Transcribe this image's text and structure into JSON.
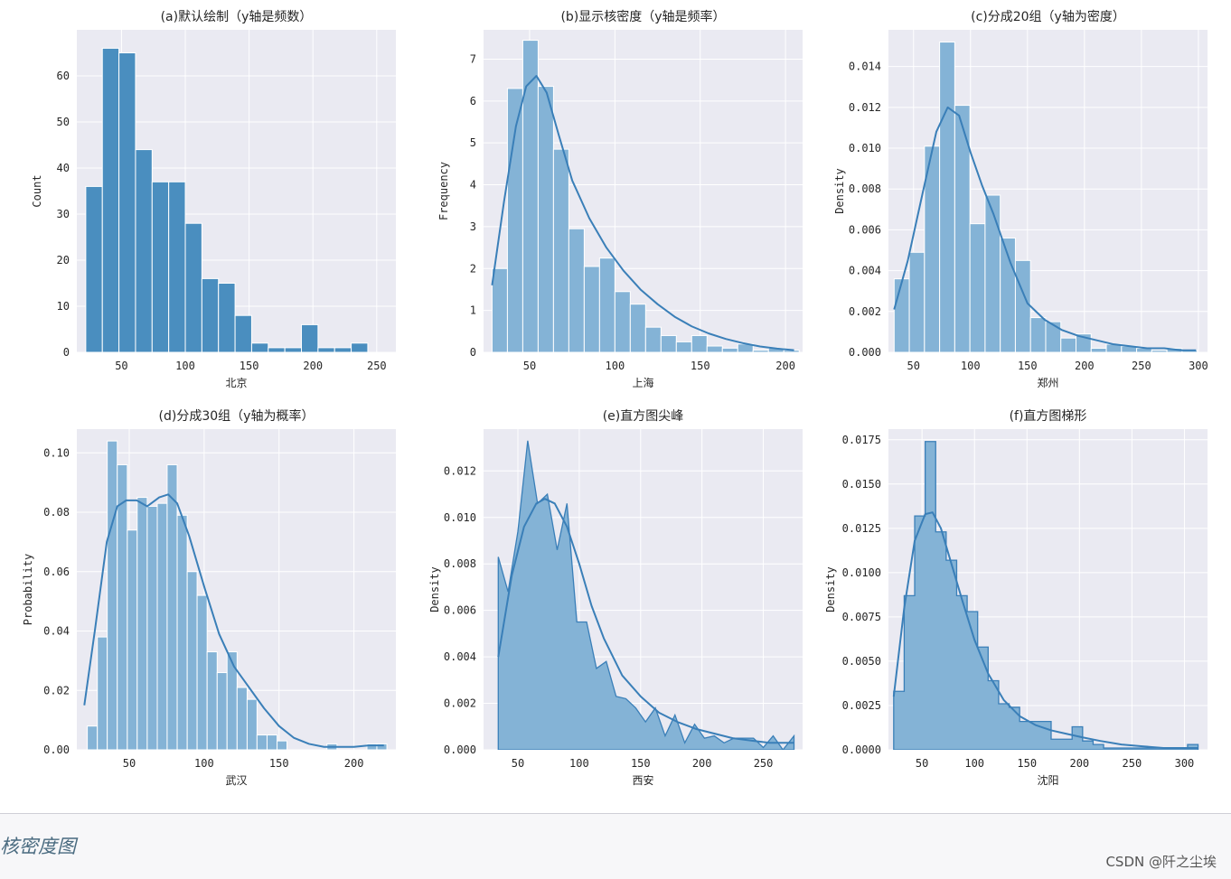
{
  "chart_data": [
    {
      "type": "bar",
      "panel": "a",
      "title": "(a)默认绘制（y轴是频数）",
      "xlabel": "北京",
      "ylabel": "Count",
      "xlim": [
        15,
        265
      ],
      "ylim": [
        0,
        70
      ],
      "xticks": [
        50,
        100,
        150,
        200,
        250
      ],
      "yticks": [
        0,
        10,
        20,
        30,
        40,
        50,
        60
      ],
      "bin_edges": [
        22,
        35,
        48,
        61,
        74,
        87,
        100,
        113,
        126,
        139,
        152,
        165,
        178,
        191,
        204,
        217,
        230,
        243,
        256
      ],
      "values": [
        36,
        66,
        65,
        44,
        37,
        37,
        28,
        16,
        15,
        8,
        2,
        1,
        1,
        6,
        1,
        1,
        2,
        0
      ],
      "style": "bars",
      "alpha": 0.9,
      "kde": null
    },
    {
      "type": "bar",
      "panel": "b",
      "title": "(b)显示核密度（y轴是频率）",
      "xlabel": "上海",
      "ylabel": "Frequency",
      "xlim": [
        23,
        210
      ],
      "ylim": [
        0,
        7.7
      ],
      "xticks": [
        50,
        100,
        150,
        200
      ],
      "yticks": [
        0,
        1,
        2,
        3,
        4,
        5,
        6,
        7
      ],
      "bin_edges": [
        28,
        37,
        46,
        55,
        64,
        73,
        82,
        91,
        100,
        109,
        118,
        127,
        136,
        145,
        154,
        163,
        172,
        181,
        190,
        199,
        208
      ],
      "values": [
        2.0,
        6.3,
        7.45,
        6.35,
        4.85,
        2.95,
        2.05,
        2.25,
        1.45,
        1.15,
        0.6,
        0.4,
        0.25,
        0.4,
        0.15,
        0.1,
        0.2,
        0.05,
        0.1,
        0.05
      ],
      "style": "bars",
      "alpha": 0.55,
      "kde": {
        "x": [
          28,
          35,
          42,
          48,
          54,
          60,
          67,
          75,
          85,
          95,
          105,
          115,
          125,
          135,
          145,
          155,
          165,
          175,
          185,
          195,
          205
        ],
        "y": [
          1.6,
          3.6,
          5.4,
          6.35,
          6.6,
          6.2,
          5.2,
          4.1,
          3.2,
          2.5,
          1.95,
          1.5,
          1.15,
          0.85,
          0.62,
          0.45,
          0.32,
          0.22,
          0.14,
          0.09,
          0.05
        ]
      }
    },
    {
      "type": "bar",
      "panel": "c",
      "title": "(c)分成20组（y轴为密度）",
      "xlabel": "郑州",
      "ylabel": "Density",
      "xlim": [
        28,
        308
      ],
      "ylim": [
        0,
        0.0158
      ],
      "xticks": [
        50,
        100,
        150,
        200,
        250,
        300
      ],
      "yticks": [
        0.0,
        0.002,
        0.004,
        0.006,
        0.008,
        0.01,
        0.012,
        0.014
      ],
      "yticklabels": [
        "0.000",
        "0.002",
        "0.004",
        "0.006",
        "0.008",
        "0.010",
        "0.012",
        "0.014"
      ],
      "bin_edges": [
        33,
        46.3,
        59.6,
        72.9,
        86.2,
        99.5,
        112.8,
        126.1,
        139.4,
        152.7,
        166,
        179.3,
        192.6,
        205.9,
        219.2,
        232.5,
        245.8,
        259.1,
        272.4,
        285.7,
        299
      ],
      "values": [
        0.0036,
        0.0049,
        0.0101,
        0.0152,
        0.0121,
        0.0063,
        0.0077,
        0.0056,
        0.0045,
        0.0017,
        0.0015,
        0.0007,
        0.0009,
        0.0002,
        0.0004,
        0.0003,
        0.0002,
        0.0001,
        0.0002,
        0.0001
      ],
      "style": "bars",
      "alpha": 0.55,
      "kde": {
        "x": [
          33,
          45,
          58,
          70,
          80,
          90,
          100,
          110,
          120,
          135,
          150,
          165,
          180,
          195,
          210,
          225,
          240,
          255,
          270,
          285,
          298
        ],
        "y": [
          0.0021,
          0.0045,
          0.0078,
          0.0108,
          0.012,
          0.0116,
          0.0098,
          0.0082,
          0.0068,
          0.0044,
          0.0024,
          0.0016,
          0.0011,
          0.0008,
          0.0006,
          0.0004,
          0.0003,
          0.0002,
          0.0002,
          0.0001,
          0.0001
        ]
      }
    },
    {
      "type": "bar",
      "panel": "d",
      "title": "(d)分成30组（y轴为概率）",
      "xlabel": "武汉",
      "ylabel": "Probability",
      "xlim": [
        15,
        228
      ],
      "ylim": [
        0,
        0.108
      ],
      "xticks": [
        50,
        100,
        150,
        200
      ],
      "yticks": [
        0.0,
        0.02,
        0.04,
        0.06,
        0.08,
        0.1
      ],
      "yticklabels": [
        "0.00",
        "0.02",
        "0.04",
        "0.06",
        "0.08",
        "0.10"
      ],
      "bin_edges": [
        22,
        28.7,
        35.3,
        42,
        48.7,
        55.3,
        62,
        68.7,
        75.3,
        82,
        88.7,
        95.3,
        102,
        108.7,
        115.3,
        122,
        128.7,
        135.3,
        142,
        148.7,
        155.3,
        162,
        168.7,
        175.3,
        182,
        188.7,
        195.3,
        202,
        208.7,
        215.3,
        222
      ],
      "values": [
        0.008,
        0.038,
        0.104,
        0.096,
        0.074,
        0.085,
        0.082,
        0.083,
        0.096,
        0.079,
        0.06,
        0.052,
        0.033,
        0.026,
        0.033,
        0.021,
        0.017,
        0.005,
        0.005,
        0.003,
        0.0,
        0.0,
        0.0,
        0.0,
        0.002,
        0.0,
        0.0,
        0.0,
        0.002,
        0.002
      ],
      "style": "bars",
      "alpha": 0.55,
      "kde": {
        "x": [
          20,
          27,
          35,
          42,
          48,
          55,
          62,
          70,
          76,
          82,
          90,
          100,
          110,
          120,
          130,
          140,
          150,
          160,
          170,
          180,
          190,
          200,
          210,
          220
        ],
        "y": [
          0.015,
          0.04,
          0.07,
          0.082,
          0.084,
          0.084,
          0.082,
          0.085,
          0.086,
          0.083,
          0.072,
          0.055,
          0.039,
          0.028,
          0.021,
          0.014,
          0.008,
          0.004,
          0.002,
          0.001,
          0.001,
          0.001,
          0.0015,
          0.0015
        ]
      }
    },
    {
      "type": "area",
      "panel": "e",
      "title": "(e)直方图尖峰",
      "xlabel": "西安",
      "ylabel": "Density",
      "xlim": [
        22,
        282
      ],
      "ylim": [
        0,
        0.0138
      ],
      "xticks": [
        50,
        100,
        150,
        200,
        250
      ],
      "yticks": [
        0.0,
        0.002,
        0.004,
        0.006,
        0.008,
        0.01,
        0.012
      ],
      "yticklabels": [
        "0.000",
        "0.002",
        "0.004",
        "0.006",
        "0.008",
        "0.010",
        "0.012"
      ],
      "bin_edges": [
        34,
        275
      ],
      "poly_x": [
        34,
        42,
        50,
        58,
        66,
        74,
        82,
        90,
        98,
        106,
        114,
        122,
        130,
        138,
        146,
        154,
        162,
        170,
        178,
        186,
        194,
        202,
        210,
        218,
        226,
        234,
        242,
        250,
        258,
        266,
        275
      ],
      "poly_y": [
        0.0083,
        0.0068,
        0.0094,
        0.0133,
        0.0106,
        0.011,
        0.0086,
        0.0106,
        0.0055,
        0.0055,
        0.0035,
        0.0038,
        0.0023,
        0.0022,
        0.0018,
        0.0012,
        0.0018,
        0.0006,
        0.0015,
        0.0003,
        0.0011,
        0.0005,
        0.0006,
        0.0003,
        0.0005,
        0.0005,
        0.0005,
        0.0001,
        0.0006,
        0.0,
        0.0006
      ],
      "style": "poly",
      "alpha": 0.55,
      "kde": {
        "x": [
          34,
          45,
          55,
          65,
          72,
          80,
          90,
          100,
          110,
          120,
          135,
          150,
          165,
          180,
          195,
          210,
          225,
          240,
          255,
          270,
          275
        ],
        "y": [
          0.004,
          0.0075,
          0.0096,
          0.0106,
          0.0108,
          0.0106,
          0.0096,
          0.008,
          0.0062,
          0.0048,
          0.0032,
          0.0023,
          0.0016,
          0.0012,
          0.0009,
          0.0007,
          0.0005,
          0.0004,
          0.0003,
          0.0003,
          0.0003
        ]
      }
    },
    {
      "type": "area",
      "panel": "f",
      "title": "(f)直方图梯形",
      "xlabel": "沈阳",
      "ylabel": "Density",
      "xlim": [
        18,
        322
      ],
      "ylim": [
        0,
        0.0181
      ],
      "xticks": [
        50,
        100,
        150,
        200,
        250,
        300
      ],
      "yticks": [
        0.0,
        0.0025,
        0.005,
        0.0075,
        0.01,
        0.0125,
        0.015,
        0.0175
      ],
      "yticklabels": [
        "0.0000",
        "0.0025",
        "0.0050",
        "0.0075",
        "0.0100",
        "0.0125",
        "0.0150",
        "0.0175"
      ],
      "bin_edges": [
        23,
        33,
        43,
        53,
        63,
        73,
        83,
        93,
        103,
        113,
        123,
        133,
        143,
        153,
        163,
        173,
        183,
        193,
        203,
        213,
        223,
        233,
        243,
        253,
        263,
        273,
        283,
        293,
        303,
        313
      ],
      "values": [
        0.0033,
        0.0087,
        0.0132,
        0.0174,
        0.0123,
        0.0107,
        0.0087,
        0.0078,
        0.0058,
        0.0039,
        0.0026,
        0.0024,
        0.0016,
        0.0016,
        0.0016,
        0.0006,
        0.0006,
        0.0013,
        0.0005,
        0.0003,
        0.0001,
        0.0001,
        0.0001,
        0.0001,
        0.0001,
        0.0001,
        0.0001,
        0.0001,
        0.0003
      ],
      "style": "step",
      "alpha": 0.55,
      "kde": {
        "x": [
          23,
          33,
          43,
          53,
          60,
          68,
          78,
          88,
          100,
          113,
          128,
          143,
          158,
          173,
          188,
          203,
          220,
          240,
          260,
          280,
          300,
          313
        ],
        "y": [
          0.003,
          0.008,
          0.0118,
          0.0133,
          0.0134,
          0.0125,
          0.0105,
          0.0085,
          0.0062,
          0.0043,
          0.0028,
          0.0019,
          0.0014,
          0.0011,
          0.0009,
          0.0007,
          0.0005,
          0.0003,
          0.0002,
          0.0001,
          0.0001,
          0.0001
        ]
      }
    }
  ],
  "caption": "核密度图",
  "watermark": "CSDN @阡之尘埃",
  "colors": {
    "bar_fill": "#4a8ebf",
    "bar_fill_light": "#84b3d6",
    "line": "#3a7fb8",
    "axes_bg": "#eaeaf2",
    "grid": "#ffffff"
  }
}
